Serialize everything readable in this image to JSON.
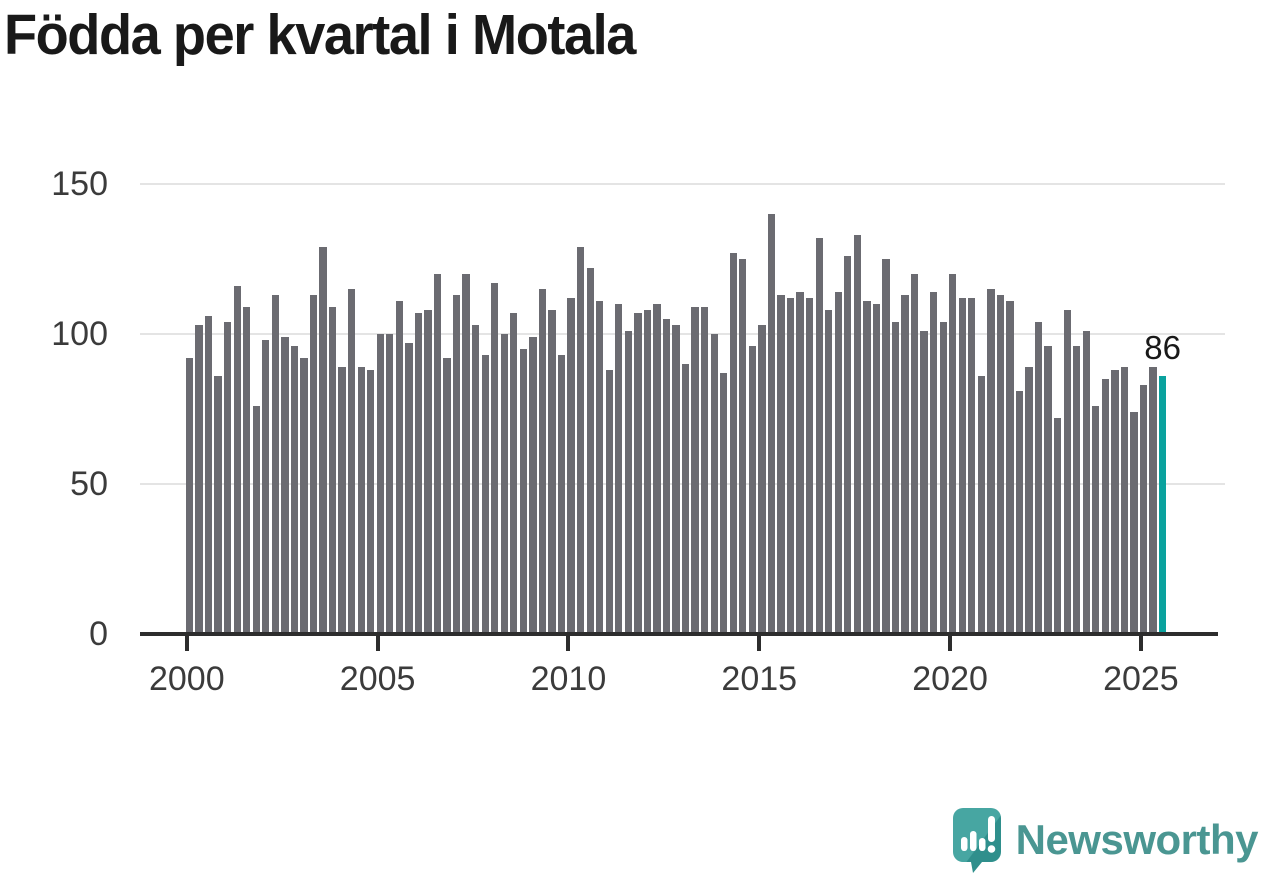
{
  "header": {
    "title": "Födda per kvartal i Motala"
  },
  "chart_data": {
    "type": "bar",
    "title": "Födda per kvartal i Motala",
    "x_start": "2000-Q1",
    "x_end": "2025-Q3",
    "frequency": "quarterly",
    "values": [
      92,
      103,
      106,
      86,
      104,
      116,
      109,
      76,
      98,
      113,
      99,
      96,
      92,
      113,
      129,
      109,
      89,
      115,
      89,
      88,
      100,
      100,
      111,
      97,
      107,
      108,
      120,
      92,
      113,
      120,
      103,
      93,
      117,
      100,
      107,
      95,
      99,
      115,
      108,
      93,
      112,
      129,
      122,
      111,
      88,
      110,
      101,
      107,
      108,
      110,
      105,
      103,
      90,
      109,
      109,
      100,
      87,
      127,
      125,
      96,
      103,
      140,
      113,
      112,
      114,
      112,
      132,
      108,
      114,
      126,
      133,
      111,
      110,
      125,
      104,
      113,
      120,
      101,
      114,
      104,
      120,
      112,
      112,
      86,
      115,
      113,
      111,
      81,
      89,
      104,
      96,
      72,
      108,
      96,
      101,
      76,
      85,
      88,
      89,
      74,
      83,
      89,
      86
    ],
    "highlight_index": 102,
    "highlight_value_label": "86",
    "ylim": [
      0,
      150
    ],
    "yticks": [
      0,
      50,
      100,
      150
    ],
    "xticks": [
      2000,
      2005,
      2010,
      2015,
      2020,
      2025
    ],
    "grid": true,
    "legend": "none",
    "bar_color": "#6b6b71",
    "highlight_color": "#0aa29e"
  },
  "branding": {
    "name": "Newsworthy",
    "logo_icon": "newsworthy-speech-bubble-chart-icon",
    "accent_color": "#44a4a0",
    "text_color": "#4a9692"
  }
}
